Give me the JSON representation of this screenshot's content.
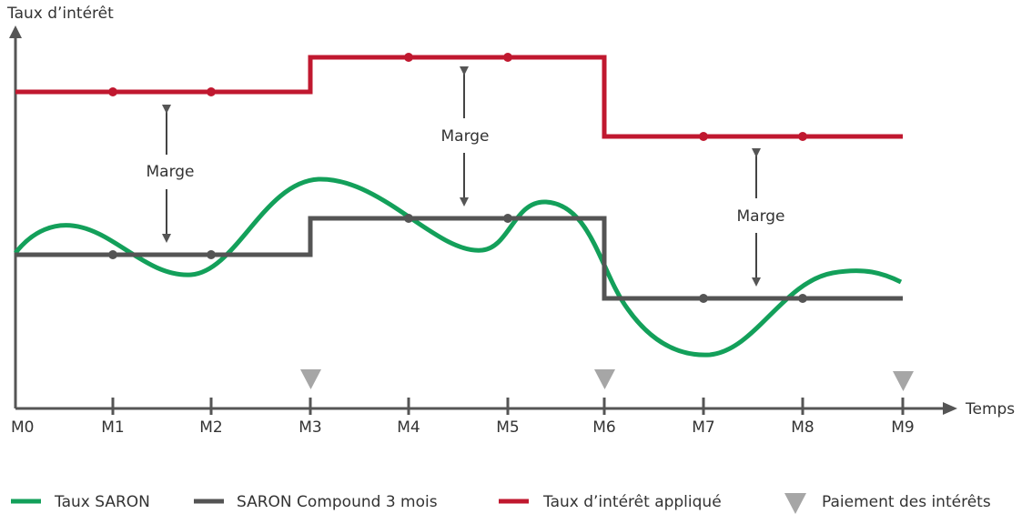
{
  "axes": {
    "y_label": "Taux d’intérêt",
    "x_label": "Temps",
    "months": [
      "M0",
      "M1",
      "M2",
      "M3",
      "M4",
      "M5",
      "M6",
      "M7",
      "M8",
      "M9"
    ]
  },
  "annotations": [
    "Marge",
    "Marge",
    "Marge"
  ],
  "legend": [
    "Taux SARON",
    "SARON Compound 3 mois",
    "Taux d’intérêt appliqué",
    "Paiement des intérêts"
  ]
}
